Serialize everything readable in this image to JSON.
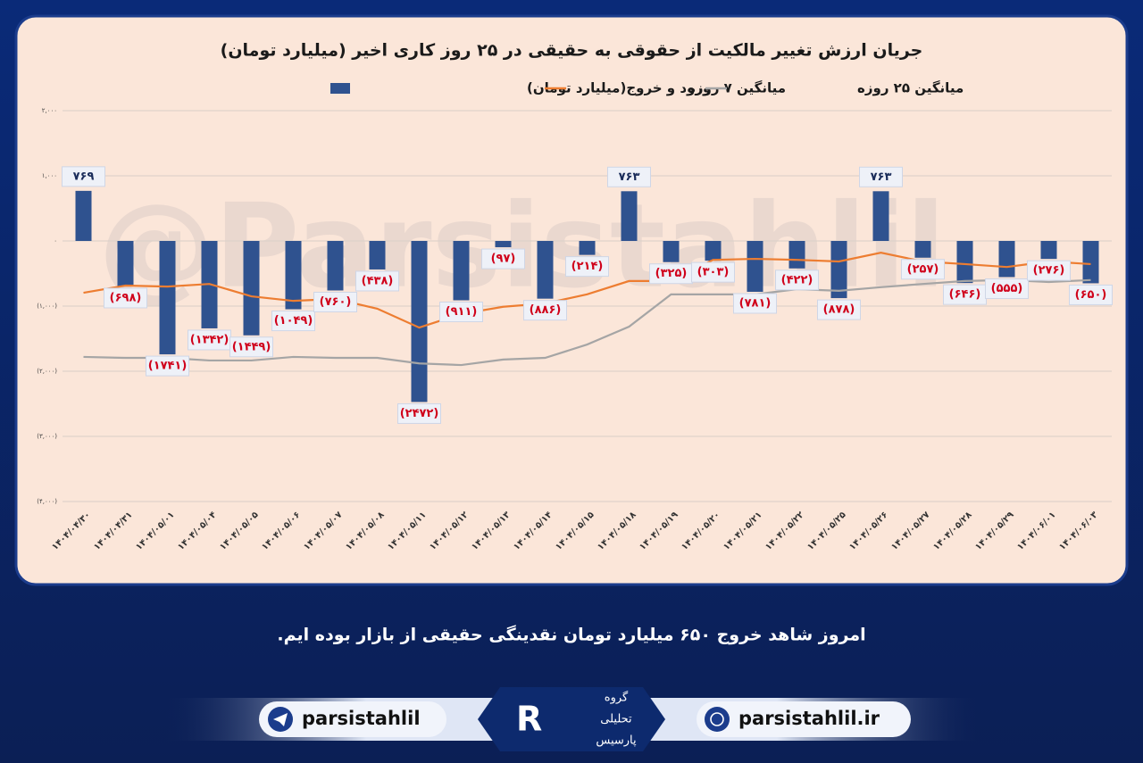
{
  "chart_data": {
    "type": "bar",
    "title": "جریان ارزش تغییر مالکیت از حقوقی به حقیقی در ۲۵ روز کاری اخیر (میلیارد تومان)",
    "categories": [
      "۱۴۰۴/۰۴/۳۰",
      "۱۴۰۴/۰۴/۳۱",
      "۱۴۰۴/۰۵/۰۱",
      "۱۴۰۴/۰۵/۰۴",
      "۱۴۰۴/۰۵/۰۵",
      "۱۴۰۴/۰۵/۰۶",
      "۱۴۰۴/۰۵/۰۷",
      "۱۴۰۴/۰۵/۰۸",
      "۱۴۰۴/۰۵/۱۱",
      "۱۴۰۴/۰۵/۱۲",
      "۱۴۰۴/۰۵/۱۳",
      "۱۴۰۴/۰۵/۱۴",
      "۱۴۰۴/۰۵/۱۵",
      "۱۴۰۴/۰۵/۱۸",
      "۱۴۰۴/۰۵/۱۹",
      "۱۴۰۴/۰۵/۲۰",
      "۱۴۰۴/۰۵/۲۱",
      "۱۴۰۴/۰۵/۲۲",
      "۱۴۰۴/۰۵/۲۵",
      "۱۴۰۴/۰۵/۲۶",
      "۱۴۰۴/۰۵/۲۷",
      "۱۴۰۴/۰۵/۲۸",
      "۱۴۰۴/۰۵/۲۹",
      "۱۴۰۴/۰۶/۰۱",
      "۱۴۰۴/۰۶/۰۳"
    ],
    "series": [
      {
        "name": "ورود و خروج(میلیارد تومان)",
        "type": "bar",
        "color": "#2f528f",
        "values": [
          769,
          -698,
          -1741,
          -1342,
          -1449,
          -1049,
          -760,
          -438,
          -2472,
          -911,
          -97,
          -886,
          -214,
          763,
          -325,
          -303,
          -781,
          -422,
          -878,
          763,
          -257,
          -646,
          -555,
          -276,
          -650
        ],
        "value_labels": [
          "۷۶۹",
          "(۶۹۸)",
          "(۱۷۴۱)",
          "(۱۳۴۲)",
          "(۱۴۴۹)",
          "(۱۰۴۹)",
          "(۷۶۰)",
          "(۴۳۸)",
          "(۲۴۷۲)",
          "(۹۱۱)",
          "(۹۷)",
          "(۸۸۶)",
          "(۲۱۴)",
          "۷۶۳",
          "(۳۲۵)",
          "(۳۰۳)",
          "(۷۸۱)",
          "(۴۲۲)",
          "(۸۷۸)",
          "۷۶۳",
          "(۲۵۷)",
          "(۶۴۶)",
          "(۵۵۵)",
          "(۲۷۶)",
          "(۶۵۰)"
        ]
      },
      {
        "name": "میانگین ۷ روزه",
        "type": "line",
        "color": "#ed7d31",
        "values": [
          -795,
          -685,
          -700,
          -660,
          -850,
          -920,
          -890,
          -1040,
          -1330,
          -1120,
          -1010,
          -960,
          -820,
          -615,
          -615,
          -290,
          -275,
          -290,
          -315,
          -180,
          -315,
          -355,
          -400,
          -315,
          -355
        ]
      },
      {
        "name": "میانگین ۲۵ روزه",
        "type": "line",
        "color": "#a5a5a5",
        "values": [
          -1780,
          -1795,
          -1795,
          -1835,
          -1835,
          -1780,
          -1795,
          -1795,
          -1880,
          -1905,
          -1820,
          -1795,
          -1590,
          -1315,
          -820,
          -820,
          -820,
          -740,
          -765,
          -710,
          -660,
          -615,
          -600,
          -630,
          -600
        ]
      }
    ],
    "ylim": [
      -4000,
      2000
    ],
    "yticks": [
      {
        "value": -4000,
        "label": "(۴,۰۰۰)"
      },
      {
        "value": -3000,
        "label": "(۳,۰۰۰)"
      },
      {
        "value": -2000,
        "label": "(۲,۰۰۰)"
      },
      {
        "value": -1000,
        "label": "(۱,۰۰۰)"
      },
      {
        "value": 0,
        "label": "۰"
      },
      {
        "value": 1000,
        "label": "۱,۰۰۰"
      },
      {
        "value": 2000,
        "label": "۲,۰۰۰"
      }
    ],
    "grid": true
  },
  "watermark": "@Parsistahlil",
  "caption": "امروز شاهد خروج ۶۵۰ میلیارد تومان نقدینگی حقیقی از بازار بوده ایم.",
  "footer": {
    "telegram": "parsistahlil",
    "website": "parsistahlil.ir",
    "logo": [
      "گروه",
      "تحلیلی",
      "پارسیس"
    ]
  }
}
